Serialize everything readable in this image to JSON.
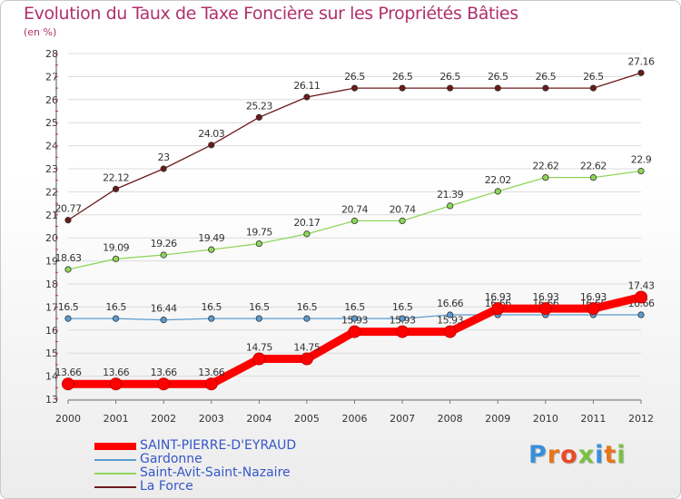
{
  "title": "Evolution du Taux de Taxe Foncière sur les Propriétés Bâties",
  "unit_note": "(en %)",
  "brand": {
    "text": "Proxiti",
    "letter_colors": [
      "#3b8fd8",
      "#e8741a",
      "#e84a2a",
      "#7ac143",
      "#3b8fd8",
      "#e8741a",
      "#7ac143"
    ]
  },
  "chart_data": {
    "type": "line",
    "x": [
      "2000",
      "2001",
      "2002",
      "2003",
      "2004",
      "2005",
      "2006",
      "2007",
      "2008",
      "2009",
      "2010",
      "2011",
      "2012"
    ],
    "ylim": [
      13,
      28
    ],
    "yticks": [
      13,
      14,
      15,
      16,
      17,
      18,
      19,
      20,
      21,
      22,
      23,
      24,
      25,
      26,
      27,
      28
    ],
    "grid": "horizontal",
    "legend_position": "bottom-left",
    "series": [
      {
        "name": "La Force",
        "color": "#6b1a1a",
        "values": [
          20.77,
          22.12,
          23,
          24.03,
          25.23,
          26.11,
          26.5,
          26.5,
          26.5,
          26.5,
          26.5,
          26.5,
          27.16
        ],
        "labels": [
          "20.77",
          "22.12",
          "23",
          "24.03",
          "25.23",
          "26.11",
          "26.5",
          "26.5",
          "26.5",
          "26.5",
          "26.5",
          "26.5",
          "27.16"
        ]
      },
      {
        "name": "Saint-Avit-Saint-Nazaire",
        "color": "#8ed65a",
        "values": [
          18.63,
          19.09,
          19.26,
          19.49,
          19.75,
          20.17,
          20.74,
          20.74,
          21.39,
          22.02,
          22.62,
          22.62,
          22.9
        ],
        "labels": [
          "18.63",
          "19.09",
          "19.26",
          "19.49",
          "19.75",
          "20.17",
          "20.74",
          "20.74",
          "21.39",
          "22.02",
          "22.62",
          "22.62",
          "22.9"
        ]
      },
      {
        "name": "Gardonne",
        "color": "#5b9bd0",
        "values": [
          16.5,
          16.5,
          16.44,
          16.5,
          16.5,
          16.5,
          16.5,
          16.5,
          16.66,
          16.66,
          16.66,
          16.66,
          16.66
        ],
        "labels": [
          "16.5",
          "16.5",
          "16.44",
          "16.5",
          "16.5",
          "16.5",
          "16.5",
          "16.5",
          "16.66",
          "16.66",
          "16.66",
          "16.66",
          "16.66"
        ]
      },
      {
        "name": "SAINT-PIERRE-D'EYRAUD",
        "color": "#ff0000",
        "values": [
          13.66,
          13.66,
          13.66,
          13.66,
          14.75,
          14.75,
          15.93,
          15.93,
          15.93,
          16.93,
          16.93,
          16.93,
          17.43
        ],
        "labels": [
          "13.66",
          "13.66",
          "13.66",
          "13.66",
          "14.75",
          "14.75",
          "15.93",
          "15.93",
          "15.93",
          "16.93",
          "16.93",
          "16.93",
          "17.43"
        ]
      }
    ],
    "legend_order": [
      "SAINT-PIERRE-D'EYRAUD",
      "Gardonne",
      "Saint-Avit-Saint-Nazaire",
      "La Force"
    ]
  }
}
